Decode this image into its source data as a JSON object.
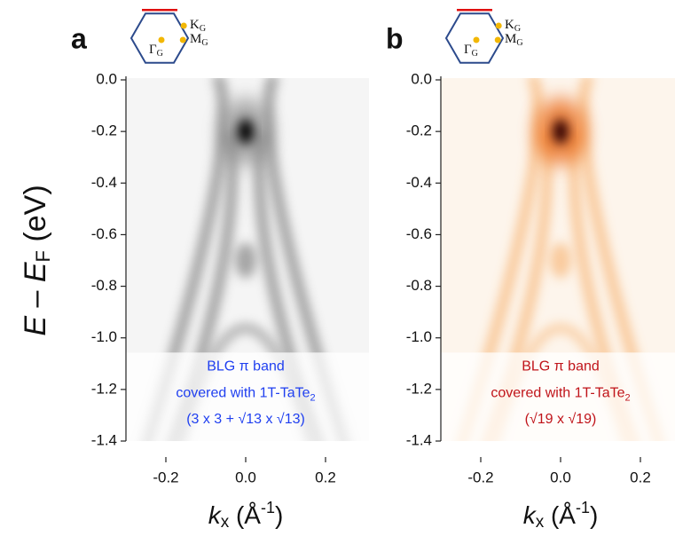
{
  "chart_data": [
    {
      "type": "heatmap",
      "panel_label": "a",
      "colormap": "gray",
      "ylabel": [
        "E",
        " – ",
        "E",
        "F",
        " (eV)"
      ],
      "xlabel": [
        "k",
        "x",
        " (Å",
        "-1",
        ")"
      ],
      "xlim": [
        -0.3,
        0.3
      ],
      "xticks": [
        -0.2,
        {
          "value": 0,
          "label": "0.0"
        },
        0.2
      ],
      "ylim": [
        -1.4,
        0
      ],
      "yticks": [
        {
          "value": 0,
          "label": "0.0"
        },
        -0.2,
        -0.4,
        -0.6,
        -0.8,
        {
          "value": -1,
          "label": "-1.0"
        },
        -1.2,
        -1.4
      ],
      "annotation": {
        "lines": [
          "BLG π band",
          "covered with 1T-TaTe",
          "2",
          "(3 x 3 + √13 x √13)"
        ],
        "color": "#1f3ff0"
      },
      "inset_labels": {
        "K": [
          "K",
          "G"
        ],
        "M": [
          "M",
          "G"
        ],
        "Gamma": [
          "Γ",
          "G"
        ]
      }
    },
    {
      "type": "heatmap",
      "panel_label": "b",
      "colormap": "orange",
      "xlabel": [
        "k",
        "x",
        " (Å",
        "-1",
        ")"
      ],
      "xlim": [
        -0.3,
        0.3
      ],
      "xticks": [
        -0.2,
        {
          "value": 0,
          "label": "0.0"
        },
        0.2
      ],
      "ylim": [
        -1.4,
        0
      ],
      "yticks": [
        {
          "value": 0,
          "label": "0.0"
        },
        -0.2,
        -0.4,
        -0.6,
        -0.8,
        {
          "value": -1,
          "label": "-1.0"
        },
        -1.2,
        -1.4
      ],
      "annotation": {
        "lines": [
          "BLG π band",
          "covered with 1T-TaTe",
          "2",
          "(√19 x √19)"
        ],
        "color": "#c0141a"
      },
      "inset_labels": {
        "K": [
          "K",
          "G"
        ],
        "M": [
          "M",
          "G"
        ],
        "Gamma": [
          "Γ",
          "G"
        ]
      }
    }
  ]
}
